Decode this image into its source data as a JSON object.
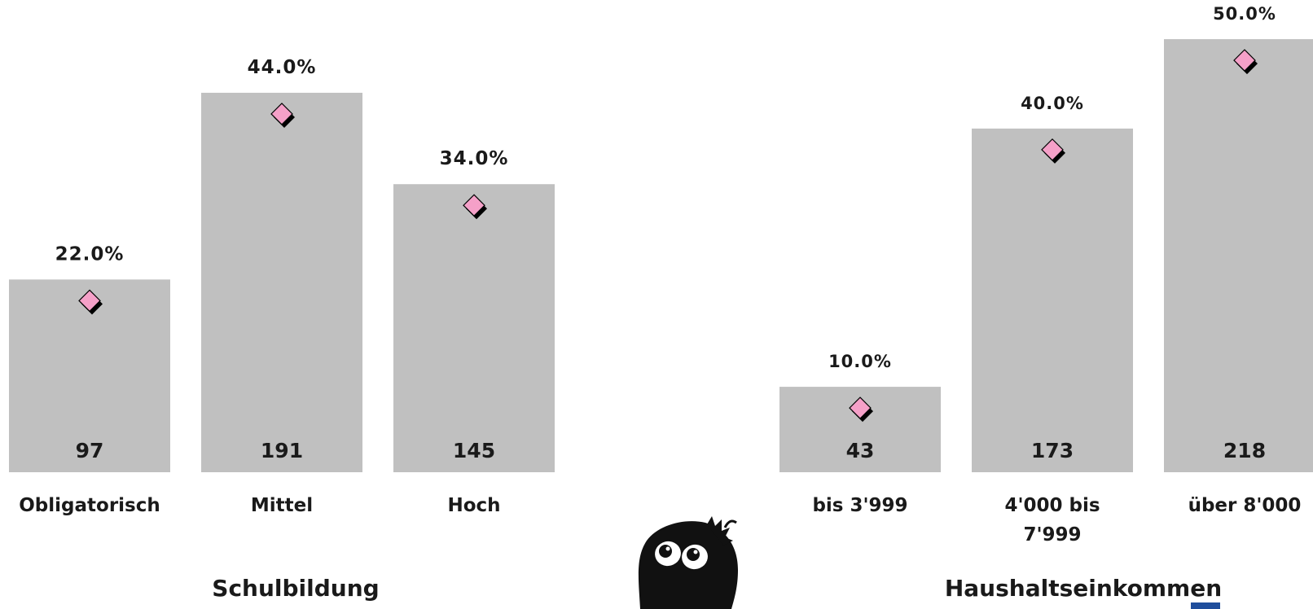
{
  "chart_data": [
    {
      "type": "bar",
      "title": "Schulbildung",
      "categories": [
        "Obligatorisch",
        "Mittel",
        "Hoch"
      ],
      "series": [
        {
          "values": [
            97,
            191,
            145
          ]
        },
        {
          "values": [
            22.0,
            44.0,
            34.0
          ]
        }
      ],
      "value_labels": [
        "97",
        "191",
        "145"
      ],
      "percent_labels": [
        "22.0%",
        "44.0%",
        "34.0%"
      ]
    },
    {
      "type": "bar",
      "title": "Haushaltseinkommen",
      "categories": [
        "bis 3'999",
        "4'000 bis 7'999",
        "über 8'000"
      ],
      "category_lines": [
        [
          "bis 3'999"
        ],
        [
          "4'000 bis",
          "7'999"
        ],
        [
          "über 8'000"
        ]
      ],
      "series": [
        {
          "values": [
            43,
            173,
            218
          ]
        },
        {
          "values": [
            10.0,
            40.0,
            50.0
          ]
        }
      ],
      "value_labels": [
        "43",
        "173",
        "218"
      ],
      "percent_labels": [
        "10.0%",
        "40.0%",
        "50.0%"
      ]
    }
  ],
  "colors": {
    "bar": "#c0c0c0",
    "marker": "#f5a0c8",
    "marker_shadow": "#000000",
    "text": "#1a1a1a"
  },
  "decoration": {
    "icon": "mascot-icon"
  }
}
